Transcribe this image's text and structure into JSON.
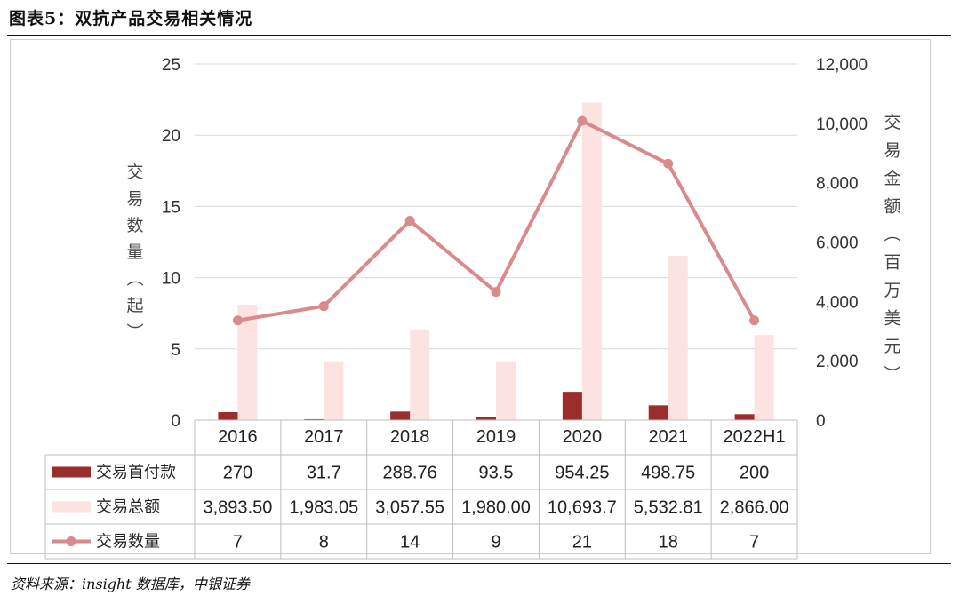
{
  "header": {
    "title": "图表5：双抗产品交易相关情况"
  },
  "footer": {
    "source": "资料来源：insight 数据库，中银证券"
  },
  "colors": {
    "upfront": "#9B2D2D",
    "total": "#FDE2E2",
    "count": "#D98A8A",
    "grid": "#d9d9d9",
    "table": "#bfbfbf"
  },
  "chart_data": {
    "type": "bar",
    "categories": [
      "2016",
      "2017",
      "2018",
      "2019",
      "2020",
      "2021",
      "2022H1"
    ],
    "series": [
      {
        "name": "交易首付款",
        "type": "bar",
        "axis": "right",
        "values": [
          270,
          31.7,
          288.76,
          93.5,
          954.25,
          498.75,
          200
        ],
        "labels": [
          "270",
          "31.7",
          "288.76",
          "93.5",
          "954.25",
          "498.75",
          "200"
        ]
      },
      {
        "name": "交易总额",
        "type": "bar",
        "axis": "right",
        "values": [
          3893.5,
          1983.05,
          3057.55,
          1980.0,
          10693.7,
          5532.81,
          2866.0
        ],
        "labels": [
          "3,893.50",
          "1,983.05",
          "3,057.55",
          "1,980.00",
          "10,693.7",
          "5,532.81",
          "2,866.00"
        ]
      },
      {
        "name": "交易数量",
        "type": "line",
        "axis": "left",
        "values": [
          7,
          8,
          14,
          9,
          21,
          18,
          7
        ],
        "labels": [
          "7",
          "8",
          "14",
          "9",
          "21",
          "18",
          "7"
        ]
      }
    ],
    "y_left": {
      "label": "交易数量（起）",
      "ylim": [
        0,
        25
      ],
      "ticks": [
        "0",
        "5",
        "10",
        "15",
        "20",
        "25"
      ]
    },
    "y_right": {
      "label": "交易金额（百万美元）",
      "ylim": [
        0,
        12000
      ],
      "ticks": [
        "0",
        "2,000",
        "4,000",
        "6,000",
        "8,000",
        "10,000",
        "12,000"
      ]
    },
    "grid": true,
    "legend": "data-table"
  }
}
